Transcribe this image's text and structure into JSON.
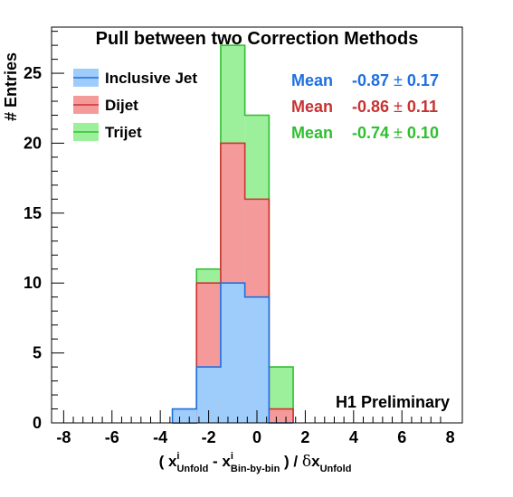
{
  "chart_data": {
    "type": "bar",
    "title": "Pull between two Correction Methods",
    "ylabel": "# Entries",
    "xlabel": {
      "prefix": "( x",
      "sup1": "i",
      "sub1": "Unfold",
      "mid": " - x",
      "sup2": "i",
      "sub2": "Bin-by-bin",
      "tail": " ) / ",
      "delta": "δ",
      "x": "x",
      "sub3": "Unfold"
    },
    "xlim": [
      -8.5,
      8.5
    ],
    "ylim": [
      0,
      28.3
    ],
    "xticks": [
      -8,
      -6,
      -4,
      -2,
      0,
      2,
      4,
      6,
      8
    ],
    "xtick_labels": [
      "-8",
      "-6",
      "-4",
      "-2",
      "0",
      "2",
      "4",
      "6",
      "8"
    ],
    "yticks": [
      0,
      5,
      10,
      15,
      20,
      25
    ],
    "ytick_labels": [
      "0",
      "5",
      "10",
      "15",
      "20",
      "25"
    ],
    "bin_edges": [
      -3.5,
      -2.5,
      -1.5,
      -0.5,
      0.5,
      1.5
    ],
    "series": [
      {
        "name": "Trijet",
        "values": [
          0,
          11,
          27,
          22,
          4
        ],
        "fill": "#9cf09c",
        "line": "#2fbf2f"
      },
      {
        "name": "Dijet",
        "values": [
          0,
          10,
          20,
          16,
          1
        ],
        "fill": "#f59a9a",
        "line": "#d03030"
      },
      {
        "name": "Inclusive Jet",
        "values": [
          1,
          4,
          10,
          9,
          0
        ],
        "fill": "#9fcdfb",
        "line": "#1e6fe0"
      }
    ],
    "legend": {
      "placement": "top-left",
      "entries": [
        {
          "label": "Inclusive Jet",
          "fill": "#9fcdfb",
          "line": "#1e6fe0"
        },
        {
          "label": "Dijet",
          "fill": "#f59a9a",
          "line": "#d03030"
        },
        {
          "label": "Trijet",
          "fill": "#9cf09c",
          "line": "#2fbf2f"
        }
      ]
    },
    "means": [
      {
        "label": "Mean",
        "value": "-0.87",
        "pm": "±",
        "err": "0.17",
        "color": "#1f6fe0"
      },
      {
        "label": "Mean",
        "value": "-0.86",
        "pm": "±",
        "err": "0.11",
        "color": "#c83232"
      },
      {
        "label": "Mean",
        "value": "-0.74",
        "pm": "±",
        "err": "0.10",
        "color": "#2fbf2f"
      }
    ],
    "annotation": "H1 Preliminary",
    "grid": false
  }
}
